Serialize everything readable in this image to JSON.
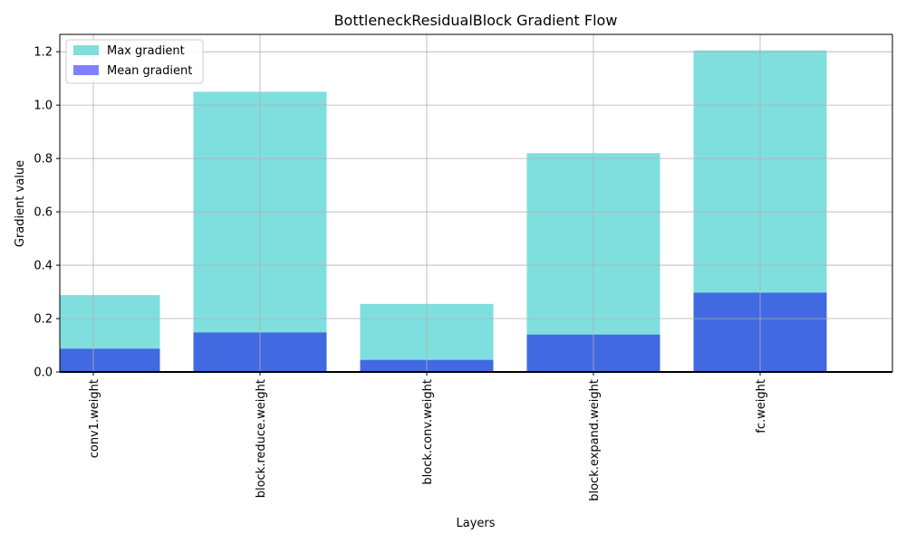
{
  "chart_data": {
    "type": "bar",
    "title": "BottleneckResidualBlock Gradient Flow",
    "xlabel": "Layers",
    "ylabel": "Gradient value",
    "categories": [
      "conv1.weight",
      "block.reduce.weight",
      "block.conv.weight",
      "block.expand.weight",
      "fc.weight"
    ],
    "series": [
      {
        "name": "Max gradient",
        "values": [
          0.288,
          1.05,
          0.255,
          0.82,
          1.205
        ],
        "color": "#7fdfdf"
      },
      {
        "name": "Mean gradient",
        "values": [
          0.087,
          0.148,
          0.045,
          0.14,
          0.297
        ],
        "color": "#8080ff",
        "overlap_color": "#4169e1"
      }
    ],
    "xlim": [
      -0.5,
      4.5
    ],
    "ylim": [
      0.0,
      1.265
    ],
    "yticks": [
      0.0,
      0.2,
      0.4,
      0.6,
      0.8,
      1.0,
      1.2
    ],
    "ytick_labels": [
      "0.0",
      "0.2",
      "0.4",
      "0.6",
      "0.8",
      "1.0",
      "1.2"
    ],
    "grid": true,
    "legend_position": "top-left"
  }
}
